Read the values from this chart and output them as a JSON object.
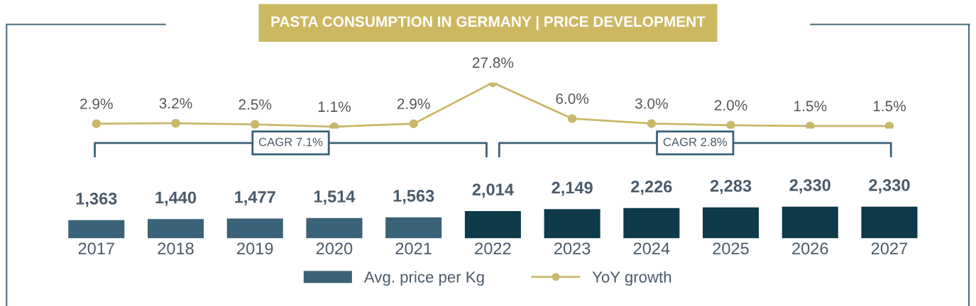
{
  "chart_data": [
    {
      "type": "line",
      "title": "PASTA CONSUMPTION IN GERMANY | PRICE DEVELOPMENT",
      "categories": [
        "2017",
        "2018",
        "2019",
        "2020",
        "2021",
        "2022",
        "2023",
        "2024",
        "2025",
        "2026",
        "2027"
      ],
      "series": [
        {
          "name": "YoY growth",
          "color": "#c9b76b",
          "values": [
            2.9,
            3.2,
            2.5,
            1.1,
            2.9,
            27.8,
            6.0,
            3.0,
            2.0,
            1.5,
            1.5
          ],
          "value_labels": [
            "2.9%",
            "3.2%",
            "2.5%",
            "1.1%",
            "2.9%",
            "27.8%",
            "6.0%",
            "3.0%",
            "2.0%",
            "1.5%",
            "1.5%"
          ]
        }
      ],
      "marker": "circle",
      "legend": "bottom",
      "tick_labels": false
    },
    {
      "type": "bar",
      "categories": [
        "2017",
        "2018",
        "2019",
        "2020",
        "2021",
        "2022",
        "2023",
        "2024",
        "2025",
        "2026",
        "2027"
      ],
      "series": [
        {
          "name": "Avg. price per Kg",
          "color": "#3a6278",
          "colors": [
            "#3a6278",
            "#3a6278",
            "#3a6278",
            "#3a6278",
            "#3a6278",
            "#0e3a4a",
            "#0e3a4a",
            "#0e3a4a",
            "#0e3a4a",
            "#0e3a4a",
            "#0e3a4a"
          ],
          "values": [
            1363,
            1440,
            1477,
            1514,
            1563,
            2014,
            2149,
            2226,
            2283,
            2330,
            2330
          ],
          "value_labels": [
            "1,363",
            "1,440",
            "1,477",
            "1,514",
            "1,563",
            "2,014",
            "2,149",
            "2,226",
            "2,283",
            "2,330",
            "2,330"
          ]
        }
      ],
      "annotations": [
        "CAGR 7.1%",
        "CAGR 2.8%"
      ],
      "legend": "bottom",
      "tick_labels": "x"
    }
  ]
}
